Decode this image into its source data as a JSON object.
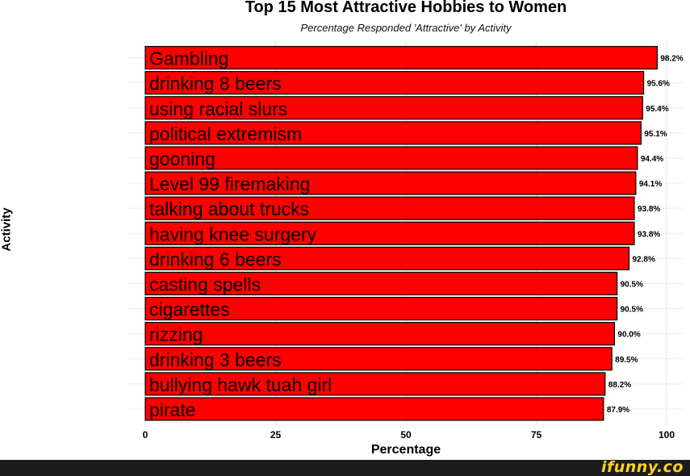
{
  "watermark": "ifunny.co",
  "chart_data": {
    "type": "bar",
    "orientation": "horizontal",
    "title": "Top 15 Most Attractive Hobbies to Women",
    "subtitle": "Percentage Responded 'Attractive' by Activity",
    "xlabel": "Percentage",
    "ylabel": "Activity",
    "xlim": [
      0,
      100
    ],
    "x_ticks": [
      "0",
      "25",
      "50",
      "75",
      "100"
    ],
    "grid": true,
    "legend": "none",
    "bar_color": "#ff0000",
    "categories": [
      "Gambling",
      "drinking 8 beers",
      "using racial slurs",
      "political extremism",
      "gooning",
      "Level 99 firemaking",
      "talking about trucks",
      "having knee surgery",
      "drinking 6 beers",
      "casting spells",
      "cigarettes",
      "rizzing",
      "drinking 3 beers",
      "bullying hawk tuah girl",
      "pirate"
    ],
    "values": [
      98.2,
      95.6,
      95.4,
      95.1,
      94.4,
      94.1,
      93.8,
      93.8,
      92.8,
      90.5,
      90.5,
      90.0,
      89.5,
      88.2,
      87.9
    ],
    "value_labels": [
      "98.2%",
      "95.6%",
      "95.4%",
      "95.1%",
      "94.4%",
      "94.1%",
      "93.8%",
      "93.8%",
      "92.8%",
      "90.5%",
      "90.5%",
      "90.0%",
      "89.5%",
      "88.2%",
      "87.9%"
    ]
  }
}
